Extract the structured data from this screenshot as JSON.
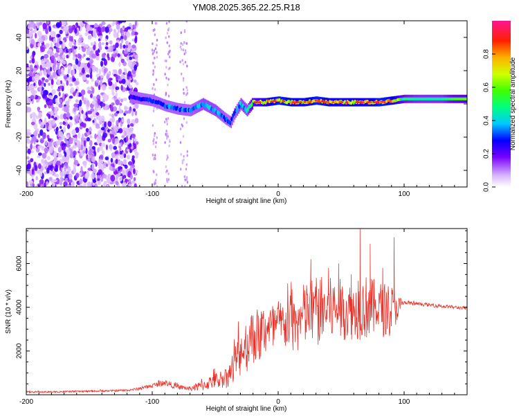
{
  "chart_data": [
    {
      "type": "heatmap",
      "title": "YM08.2025.365.22.25.R18",
      "xlabel": "Height of straight line (km)",
      "ylabel": "Frequency (Hz)",
      "xlim": [
        -200,
        150
      ],
      "ylim": [
        -50,
        50
      ],
      "x_ticks": [
        -200,
        -100,
        0,
        100
      ],
      "y_ticks": [
        -40,
        -20,
        0,
        20,
        40
      ],
      "colorbar": {
        "label": "Normalized spectral amplitude",
        "range": [
          0,
          1
        ],
        "ticks": [
          0.0,
          0.2,
          0.4,
          0.6,
          0.8
        ]
      },
      "ridge": {
        "x": [
          -115,
          -100,
          -90,
          -80,
          -70,
          -60,
          -50,
          -42,
          -38,
          -35,
          -30,
          -25,
          -20,
          -10,
          0,
          10,
          20,
          30,
          40,
          50,
          60,
          70,
          80,
          90,
          100,
          110,
          120,
          130,
          140,
          150
        ],
        "freq": [
          4,
          2,
          -1,
          -3,
          -4,
          0,
          -4,
          -9,
          -11,
          -6,
          0,
          -4,
          1,
          1,
          2,
          1,
          1,
          2,
          1,
          1,
          1,
          1,
          1,
          2,
          3,
          3,
          3,
          3,
          3,
          3
        ],
        "amplitude": [
          0.25,
          0.3,
          0.35,
          0.35,
          0.35,
          0.4,
          0.4,
          0.35,
          0.3,
          0.35,
          0.4,
          0.4,
          0.6,
          0.75,
          0.85,
          0.8,
          0.75,
          0.85,
          0.8,
          0.75,
          0.8,
          0.75,
          0.85,
          0.8,
          0.5,
          0.45,
          0.45,
          0.45,
          0.55,
          0.6
        ]
      }
    },
    {
      "type": "line",
      "xlabel": "Height of straight line (km)",
      "ylabel": "SNR (10 * v/v)",
      "xlim": [
        -200,
        150
      ],
      "ylim": [
        0,
        7600
      ],
      "x_ticks": [
        -200,
        -100,
        0,
        100
      ],
      "y_ticks": [
        2000,
        4000,
        6000
      ],
      "series": [
        {
          "name": "SNR",
          "color": "#e8322a",
          "x": [
            -200,
            -180,
            -160,
            -140,
            -120,
            -110,
            -100,
            -90,
            -80,
            -70,
            -60,
            -50,
            -40,
            -35,
            -30,
            -25,
            -20,
            -15,
            -10,
            -5,
            0,
            5,
            10,
            15,
            20,
            25,
            30,
            40,
            50,
            60,
            70,
            80,
            90,
            95,
            100,
            110,
            120,
            130,
            140,
            150
          ],
          "envelope": [
            120,
            130,
            150,
            170,
            200,
            280,
            420,
            560,
            360,
            280,
            420,
            650,
            800,
            1300,
            1900,
            2300,
            2700,
            2700,
            3000,
            2900,
            3200,
            3200,
            3300,
            3100,
            3600,
            3800,
            3800,
            3900,
            3900,
            3800,
            4000,
            3900,
            3900,
            4000,
            4200,
            4150,
            4100,
            4050,
            4000,
            3950
          ],
          "noise": [
            40,
            40,
            40,
            40,
            50,
            70,
            100,
            150,
            120,
            100,
            250,
            350,
            500,
            900,
            1100,
            1300,
            1300,
            1300,
            1300,
            1300,
            1200,
            1200,
            1300,
            1300,
            1500,
            1600,
            1700,
            1500,
            1400,
            1300,
            1500,
            1300,
            1200,
            600,
            100,
            80,
            80,
            80,
            80,
            80
          ],
          "peaks": [
            {
              "x": 26,
              "y": 6200
            },
            {
              "x": 40,
              "y": 5800
            },
            {
              "x": 48,
              "y": 6000
            },
            {
              "x": 58,
              "y": 5500
            },
            {
              "x": 65,
              "y": 7600
            },
            {
              "x": 73,
              "y": 6900
            },
            {
              "x": 83,
              "y": 5800
            },
            {
              "x": 92,
              "y": 7200
            }
          ]
        }
      ]
    }
  ]
}
